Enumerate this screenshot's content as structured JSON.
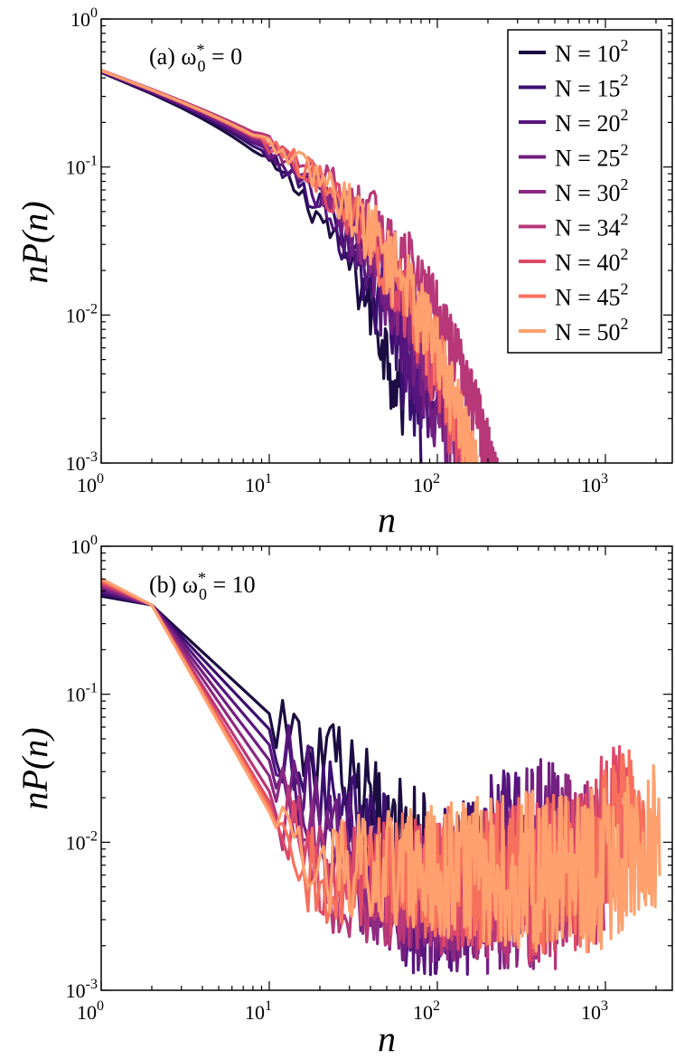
{
  "chart_data": [
    {
      "type": "line",
      "panel": "a",
      "panel_label": "(a) ω₀* = 0",
      "panel_label_main": "(a) ω",
      "panel_label_sup": "*",
      "panel_label_sub": "0",
      "panel_label_rest": " = 0",
      "xlabel": "n",
      "ylabel": "nP(n)",
      "xscale": "log",
      "yscale": "log",
      "xlim": [
        1,
        2500
      ],
      "ylim": [
        0.001,
        1
      ],
      "x_ticks": [
        {
          "base": "10",
          "exp": "0"
        },
        {
          "base": "10",
          "exp": "1"
        },
        {
          "base": "10",
          "exp": "2"
        },
        {
          "base": "10",
          "exp": "3"
        }
      ],
      "y_ticks": [
        {
          "base": "10",
          "exp": "-3"
        },
        {
          "base": "10",
          "exp": "-2"
        },
        {
          "base": "10",
          "exp": "-1"
        },
        {
          "base": "10",
          "exp": "0"
        }
      ],
      "legend_position": "top-right",
      "series": [
        {
          "name": "N = 10²",
          "label_main": "N = 10",
          "label_sup": "2",
          "color": "#1b0c41",
          "cutoff": 55
        },
        {
          "name": "N = 15²",
          "label_main": "N = 15",
          "label_sup": "2",
          "color": "#3b0f70",
          "cutoff": 70
        },
        {
          "name": "N = 20²",
          "label_main": "N = 20",
          "label_sup": "2",
          "color": "#57157e",
          "cutoff": 85
        },
        {
          "name": "N = 25²",
          "label_main": "N = 25",
          "label_sup": "2",
          "color": "#721f81",
          "cutoff": 100
        },
        {
          "name": "N = 30²",
          "label_main": "N = 30",
          "label_sup": "2",
          "color": "#8c2981",
          "cutoff": 120
        },
        {
          "name": "N = 34²",
          "label_main": "N = 34",
          "label_sup": "2",
          "color": "#b73779",
          "cutoff": 200
        },
        {
          "name": "N = 40²",
          "label_main": "N = 40",
          "label_sup": "2",
          "color": "#de4968",
          "cutoff": 130
        },
        {
          "name": "N = 45²",
          "label_main": "N = 45",
          "label_sup": "2",
          "color": "#f7705c",
          "cutoff": 145
        },
        {
          "name": "N = 50²",
          "label_main": "N = 50",
          "label_sup": "2",
          "color": "#fea16e",
          "cutoff": 150
        }
      ]
    },
    {
      "type": "line",
      "panel": "b",
      "panel_label": "(b) ω₀* = 10",
      "panel_label_main": "(b) ω",
      "panel_label_sup": "*",
      "panel_label_sub": "0",
      "panel_label_rest": " = 10",
      "xlabel": "n",
      "ylabel": "nP(n)",
      "xscale": "log",
      "yscale": "log",
      "xlim": [
        1,
        2500
      ],
      "ylim": [
        0.001,
        1
      ],
      "x_ticks": [
        {
          "base": "10",
          "exp": "0"
        },
        {
          "base": "10",
          "exp": "1"
        },
        {
          "base": "10",
          "exp": "2"
        },
        {
          "base": "10",
          "exp": "3"
        }
      ],
      "y_ticks": [
        {
          "base": "10",
          "exp": "-3"
        },
        {
          "base": "10",
          "exp": "-2"
        },
        {
          "base": "10",
          "exp": "-1"
        },
        {
          "base": "10",
          "exp": "0"
        }
      ],
      "series": [
        {
          "name": "N = 10²",
          "color": "#1b0c41",
          "n_max": 100,
          "slope": 1.05,
          "peak_level": 0.018,
          "peak_at": 60
        },
        {
          "name": "N = 15²",
          "color": "#3b0f70",
          "n_max": 225,
          "slope": 1.2,
          "peak_level": 0.012,
          "peak_at": 140
        },
        {
          "name": "N = 20²",
          "color": "#57157e",
          "n_max": 400,
          "slope": 1.35,
          "peak_level": 0.02,
          "peak_at": 280
        },
        {
          "name": "N = 25²",
          "color": "#721f81",
          "n_max": 625,
          "slope": 1.5,
          "peak_level": 0.018,
          "peak_at": 420
        },
        {
          "name": "N = 30²",
          "color": "#8c2981",
          "n_max": 900,
          "slope": 1.65,
          "peak_level": 0.014,
          "peak_at": 600
        },
        {
          "name": "N = 34²",
          "color": "#b73779",
          "n_max": 1156,
          "slope": 1.8,
          "peak_level": 0.012,
          "peak_at": 800
        },
        {
          "name": "N = 40²",
          "color": "#de4968",
          "n_max": 1600,
          "slope": 1.9,
          "peak_level": 0.022,
          "peak_at": 1100
        },
        {
          "name": "N = 45²",
          "color": "#f7705c",
          "n_max": 2025,
          "slope": 1.95,
          "peak_level": 0.025,
          "peak_at": 1500
        },
        {
          "name": "N = 50²",
          "color": "#fea16e",
          "n_max": 2500,
          "slope": 2.0,
          "peak_level": 0.02,
          "peak_at": 1700
        }
      ]
    }
  ]
}
